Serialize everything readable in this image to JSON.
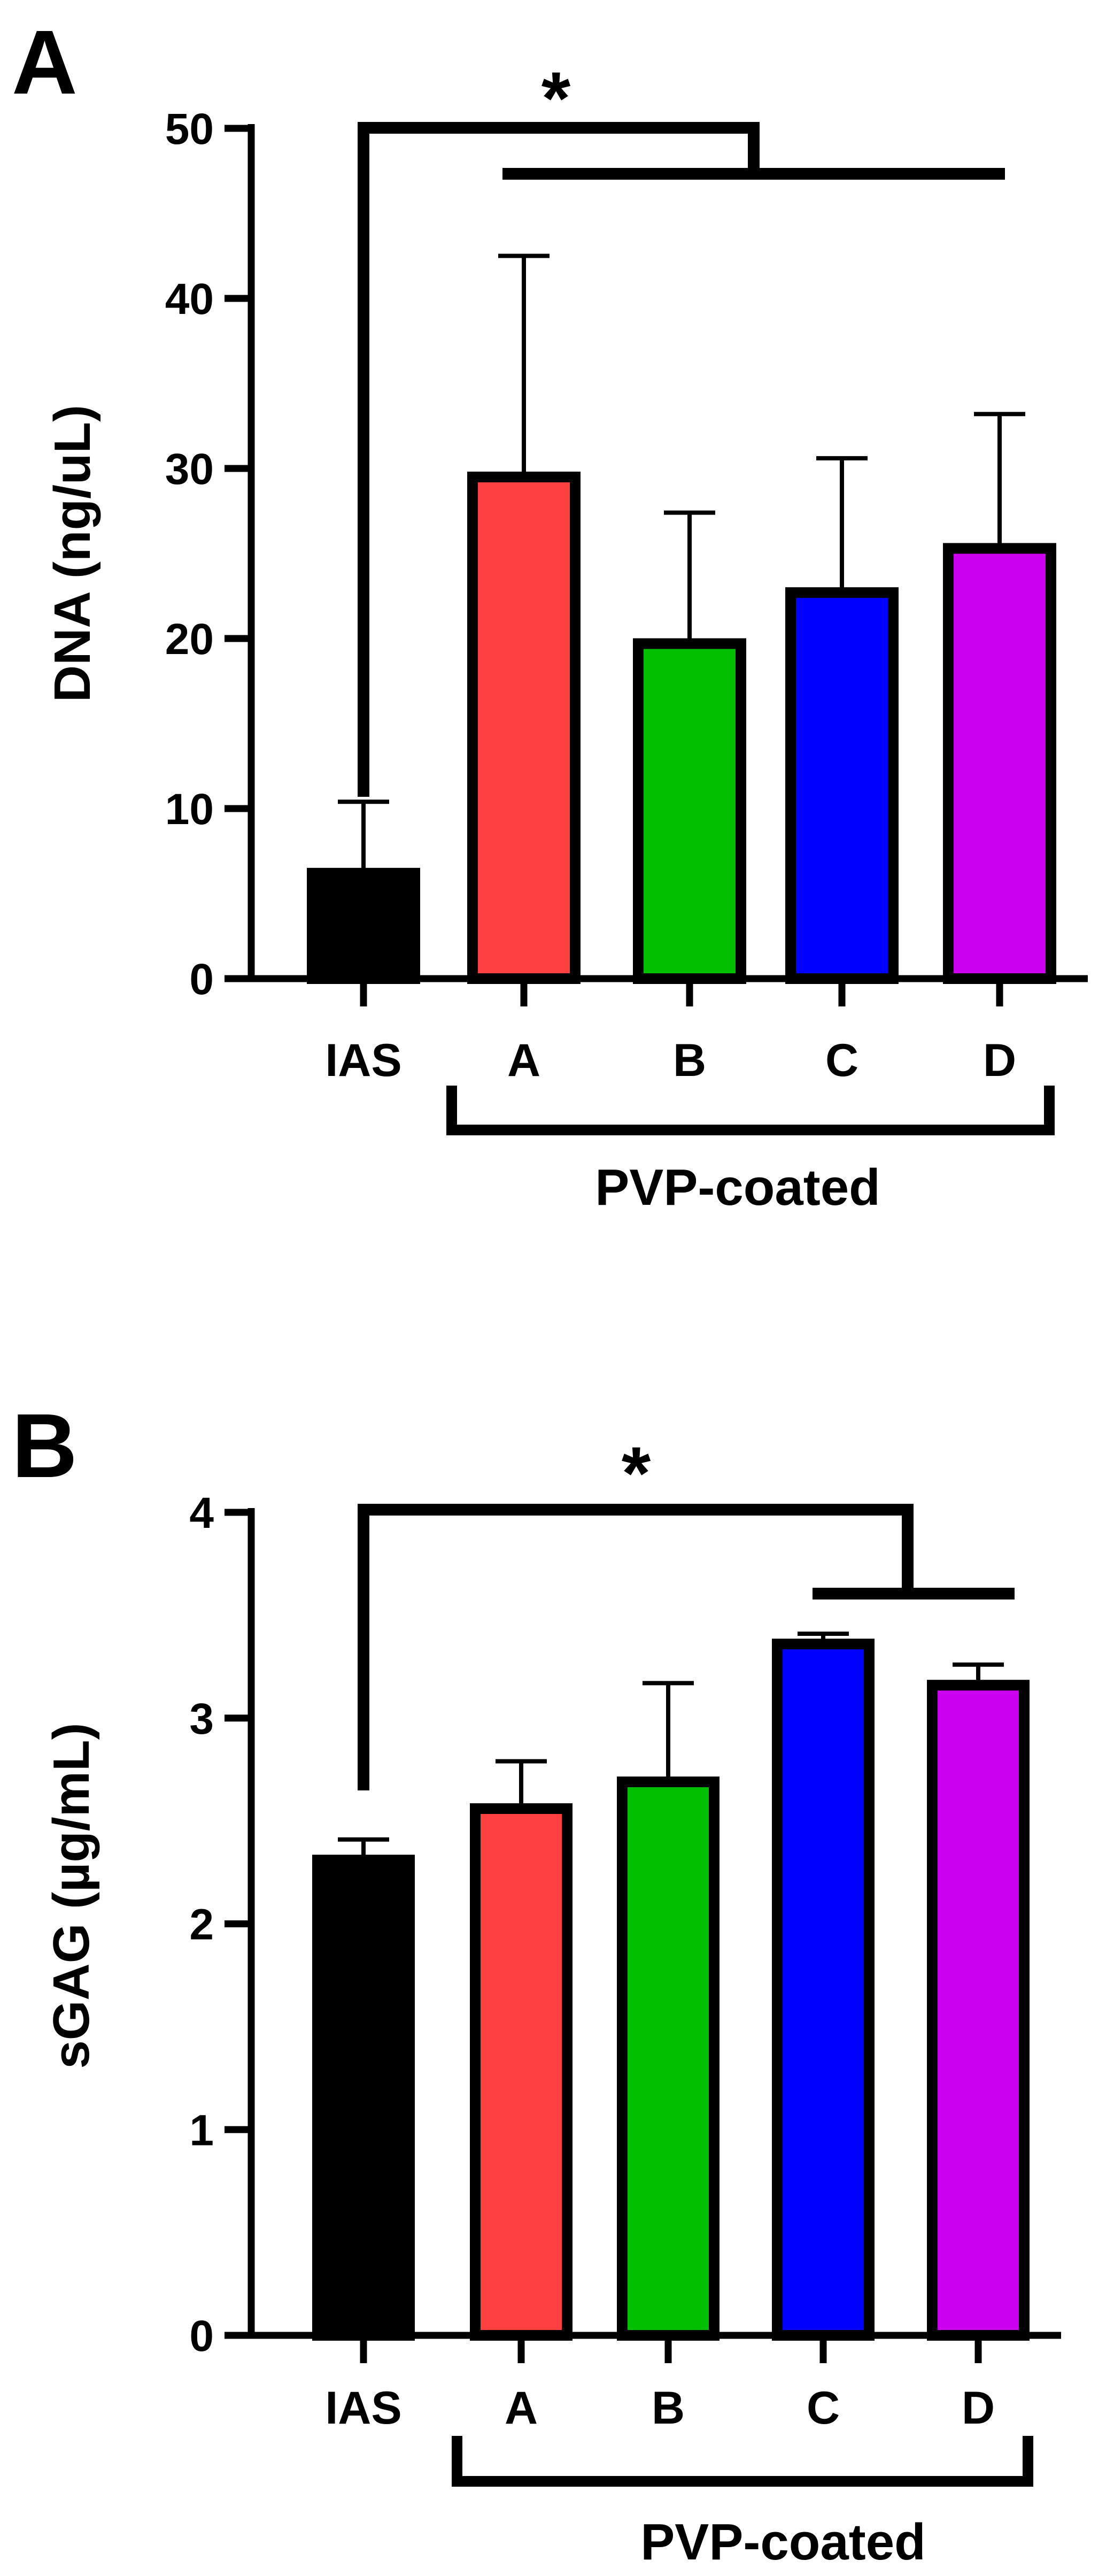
{
  "chart_data": [
    {
      "panel": "A",
      "type": "bar",
      "ylabel": "DNA (ng/uL)",
      "ylim": [
        0,
        50
      ],
      "yticks": [
        "0",
        "10",
        "20",
        "30",
        "40",
        "50"
      ],
      "categories": [
        "IAS",
        "A",
        "B",
        "C",
        "D"
      ],
      "values": [
        6.2,
        29.5,
        19.7,
        22.7,
        25.3
      ],
      "errors": [
        4.2,
        13.0,
        7.7,
        7.9,
        7.9
      ],
      "colors": [
        "#000000",
        "#ff4040",
        "#00c000",
        "#0000ff",
        "#cc00ee"
      ],
      "group_label": "PVP-coated",
      "significance": "*"
    },
    {
      "panel": "B",
      "type": "bar",
      "ylabel": "sGAG (µg/mL)",
      "ylim": [
        0,
        4
      ],
      "yticks": [
        "0",
        "1",
        "2",
        "3",
        "4"
      ],
      "categories": [
        "IAS",
        "A",
        "B",
        "C",
        "D"
      ],
      "values": [
        2.31,
        2.56,
        2.69,
        3.36,
        3.16
      ],
      "errors": [
        0.1,
        0.23,
        0.48,
        0.05,
        0.1
      ],
      "colors": [
        "#000000",
        "#ff4040",
        "#00c000",
        "#0000ff",
        "#cc00ee"
      ],
      "group_label": "PVP-coated",
      "significance": "*"
    }
  ]
}
